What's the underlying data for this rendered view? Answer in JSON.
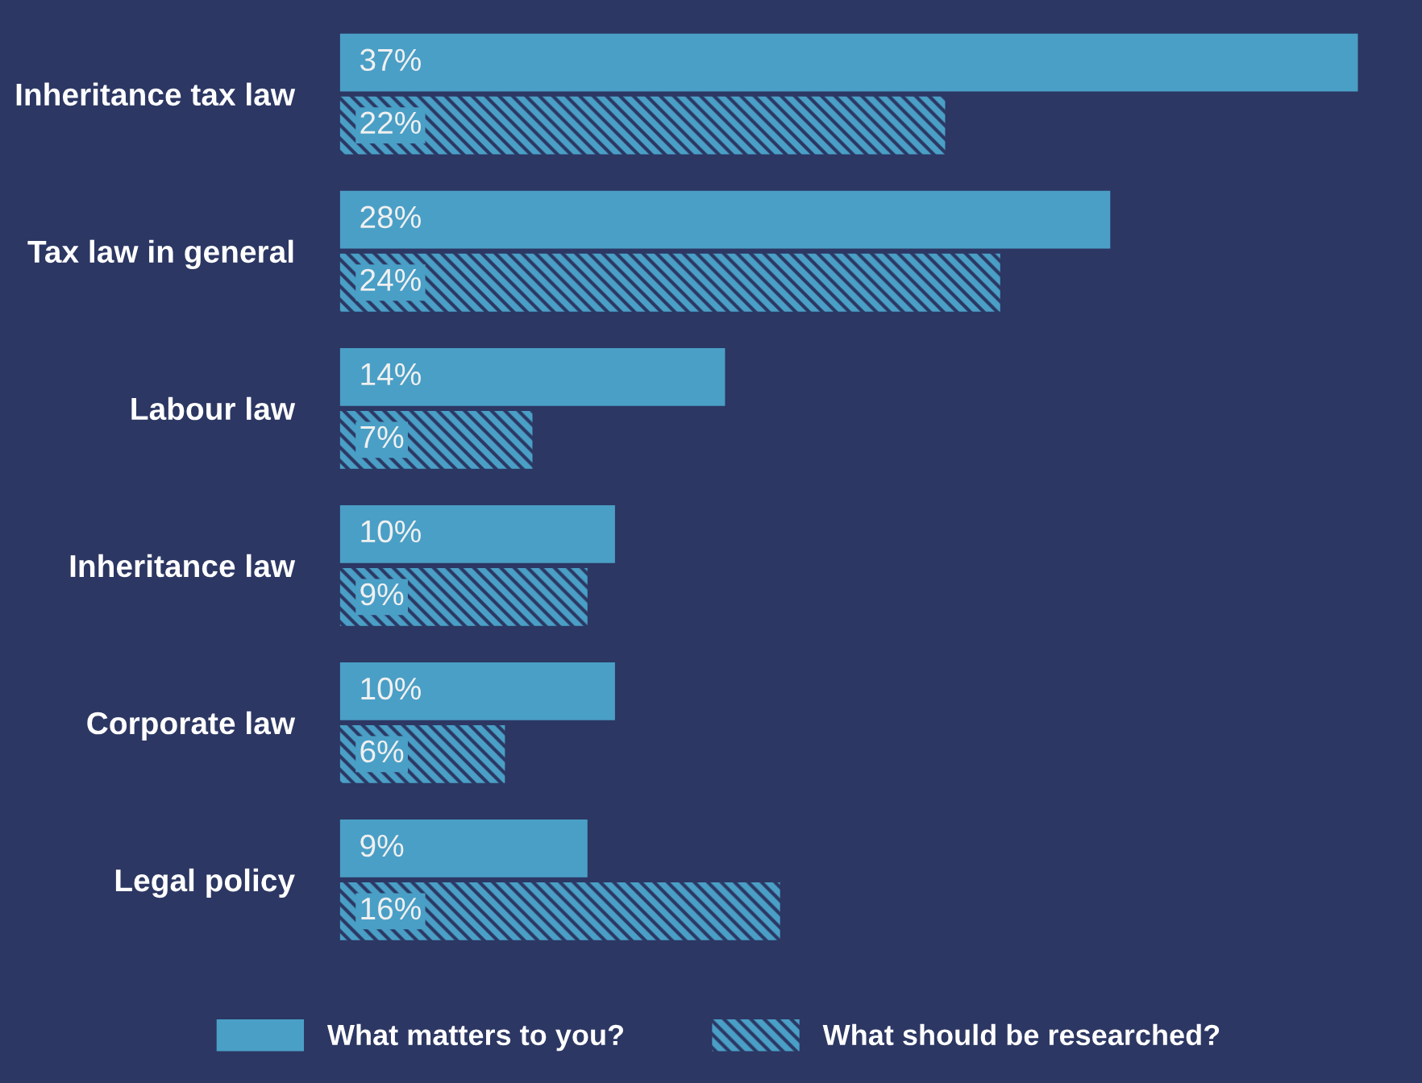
{
  "chart_data": {
    "type": "bar",
    "orientation": "horizontal",
    "categories": [
      "Inheritance tax law",
      "Tax law in general",
      "Labour law",
      "Inheritance law",
      "Corporate law",
      "Legal policy"
    ],
    "series": [
      {
        "name": "What matters to you?",
        "color": "#4a9fc6",
        "values": [
          37,
          28,
          14,
          10,
          10,
          9
        ],
        "value_labels": [
          "37%",
          "28%",
          "14%",
          "10%",
          "10%",
          "9%"
        ]
      },
      {
        "name": "What should be researched?",
        "color": "#4a9fc6",
        "values": [
          22,
          24,
          7,
          9,
          6,
          16
        ],
        "value_labels": [
          "22%",
          "24%",
          "7%",
          "9%",
          "6%",
          "16%"
        ]
      }
    ],
    "legend": "bottom",
    "grid": false
  }
}
